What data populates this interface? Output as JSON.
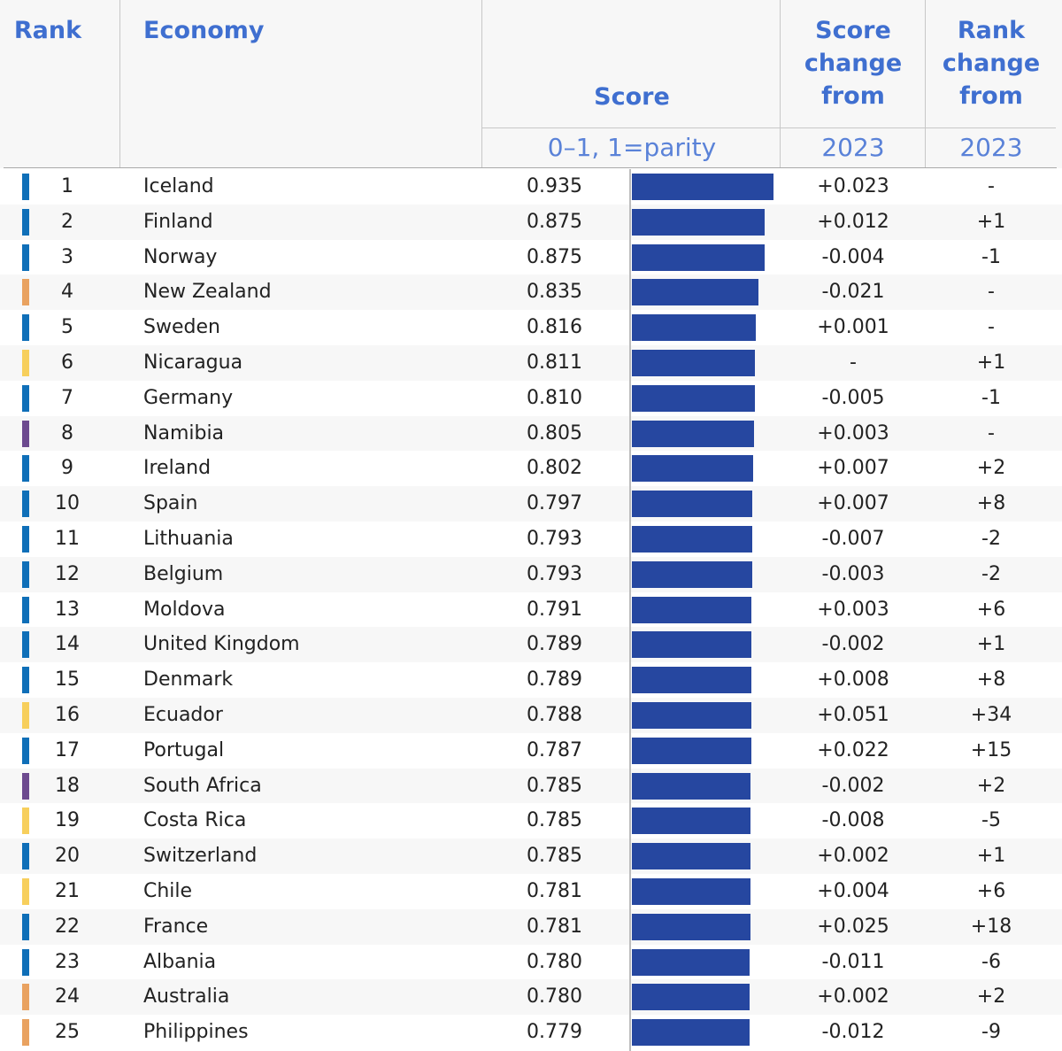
{
  "header": {
    "rank": "Rank",
    "economy": "Economy",
    "score": "Score",
    "score_unit": "0–1, 1=parity",
    "score_change_lines": [
      "Score",
      "change",
      "from"
    ],
    "rank_change_lines": [
      "Rank",
      "change",
      "from"
    ],
    "year1": "2023",
    "year2": "2023"
  },
  "colors": {
    "header_text": "#3f6fd0",
    "bar": "#2647a0",
    "region_europe": "#0f6fb8",
    "region_asia_pacific": "#e9a260",
    "region_latin_america": "#f7cf5c",
    "region_sub_saharan_africa": "#6d4a8f"
  },
  "chart_data": {
    "type": "bar",
    "xlim": [
      0,
      1
    ],
    "categories": [
      "Iceland",
      "Finland",
      "Norway",
      "New Zealand",
      "Sweden",
      "Nicaragua",
      "Germany",
      "Namibia",
      "Ireland",
      "Spain",
      "Lithuania",
      "Belgium",
      "Moldova",
      "United Kingdom",
      "Denmark",
      "Ecuador",
      "Portugal",
      "South Africa",
      "Costa Rica",
      "Switzerland",
      "Chile",
      "France",
      "Albania",
      "Australia",
      "Philippines"
    ],
    "rows": [
      {
        "rank": "1",
        "economy": "Iceland",
        "score": "0.935",
        "value": 0.935,
        "score_change": "+0.023",
        "rank_change": "-",
        "region_color": "#0f6fb8"
      },
      {
        "rank": "2",
        "economy": "Finland",
        "score": "0.875",
        "value": 0.875,
        "score_change": "+0.012",
        "rank_change": "+1",
        "region_color": "#0f6fb8"
      },
      {
        "rank": "3",
        "economy": "Norway",
        "score": "0.875",
        "value": 0.875,
        "score_change": "-0.004",
        "rank_change": "-1",
        "region_color": "#0f6fb8"
      },
      {
        "rank": "4",
        "economy": "New Zealand",
        "score": "0.835",
        "value": 0.835,
        "score_change": "-0.021",
        "rank_change": "-",
        "region_color": "#e9a260"
      },
      {
        "rank": "5",
        "economy": "Sweden",
        "score": "0.816",
        "value": 0.816,
        "score_change": "+0.001",
        "rank_change": "-",
        "region_color": "#0f6fb8"
      },
      {
        "rank": "6",
        "economy": "Nicaragua",
        "score": "0.811",
        "value": 0.811,
        "score_change": "-",
        "rank_change": "+1",
        "region_color": "#f7cf5c"
      },
      {
        "rank": "7",
        "economy": "Germany",
        "score": "0.810",
        "value": 0.81,
        "score_change": "-0.005",
        "rank_change": "-1",
        "region_color": "#0f6fb8"
      },
      {
        "rank": "8",
        "economy": "Namibia",
        "score": "0.805",
        "value": 0.805,
        "score_change": "+0.003",
        "rank_change": "-",
        "region_color": "#6d4a8f"
      },
      {
        "rank": "9",
        "economy": "Ireland",
        "score": "0.802",
        "value": 0.802,
        "score_change": "+0.007",
        "rank_change": "+2",
        "region_color": "#0f6fb8"
      },
      {
        "rank": "10",
        "economy": "Spain",
        "score": "0.797",
        "value": 0.797,
        "score_change": "+0.007",
        "rank_change": "+8",
        "region_color": "#0f6fb8"
      },
      {
        "rank": "11",
        "economy": "Lithuania",
        "score": "0.793",
        "value": 0.793,
        "score_change": "-0.007",
        "rank_change": "-2",
        "region_color": "#0f6fb8"
      },
      {
        "rank": "12",
        "economy": "Belgium",
        "score": "0.793",
        "value": 0.793,
        "score_change": "-0.003",
        "rank_change": "-2",
        "region_color": "#0f6fb8"
      },
      {
        "rank": "13",
        "economy": "Moldova",
        "score": "0.791",
        "value": 0.791,
        "score_change": "+0.003",
        "rank_change": "+6",
        "region_color": "#0f6fb8"
      },
      {
        "rank": "14",
        "economy": "United Kingdom",
        "score": "0.789",
        "value": 0.789,
        "score_change": "-0.002",
        "rank_change": "+1",
        "region_color": "#0f6fb8"
      },
      {
        "rank": "15",
        "economy": "Denmark",
        "score": "0.789",
        "value": 0.789,
        "score_change": "+0.008",
        "rank_change": "+8",
        "region_color": "#0f6fb8"
      },
      {
        "rank": "16",
        "economy": "Ecuador",
        "score": "0.788",
        "value": 0.788,
        "score_change": "+0.051",
        "rank_change": "+34",
        "region_color": "#f7cf5c"
      },
      {
        "rank": "17",
        "economy": "Portugal",
        "score": "0.787",
        "value": 0.787,
        "score_change": "+0.022",
        "rank_change": "+15",
        "region_color": "#0f6fb8"
      },
      {
        "rank": "18",
        "economy": "South Africa",
        "score": "0.785",
        "value": 0.785,
        "score_change": "-0.002",
        "rank_change": "+2",
        "region_color": "#6d4a8f"
      },
      {
        "rank": "19",
        "economy": "Costa Rica",
        "score": "0.785",
        "value": 0.785,
        "score_change": "-0.008",
        "rank_change": "-5",
        "region_color": "#f7cf5c"
      },
      {
        "rank": "20",
        "economy": "Switzerland",
        "score": "0.785",
        "value": 0.785,
        "score_change": "+0.002",
        "rank_change": "+1",
        "region_color": "#0f6fb8"
      },
      {
        "rank": "21",
        "economy": "Chile",
        "score": "0.781",
        "value": 0.781,
        "score_change": "+0.004",
        "rank_change": "+6",
        "region_color": "#f7cf5c"
      },
      {
        "rank": "22",
        "economy": "France",
        "score": "0.781",
        "value": 0.781,
        "score_change": "+0.025",
        "rank_change": "+18",
        "region_color": "#0f6fb8"
      },
      {
        "rank": "23",
        "economy": "Albania",
        "score": "0.780",
        "value": 0.78,
        "score_change": "-0.011",
        "rank_change": "-6",
        "region_color": "#0f6fb8"
      },
      {
        "rank": "24",
        "economy": "Australia",
        "score": "0.780",
        "value": 0.78,
        "score_change": "+0.002",
        "rank_change": "+2",
        "region_color": "#e9a260"
      },
      {
        "rank": "25",
        "economy": "Philippines",
        "score": "0.779",
        "value": 0.779,
        "score_change": "-0.012",
        "rank_change": "-9",
        "region_color": "#e9a260"
      }
    ]
  }
}
